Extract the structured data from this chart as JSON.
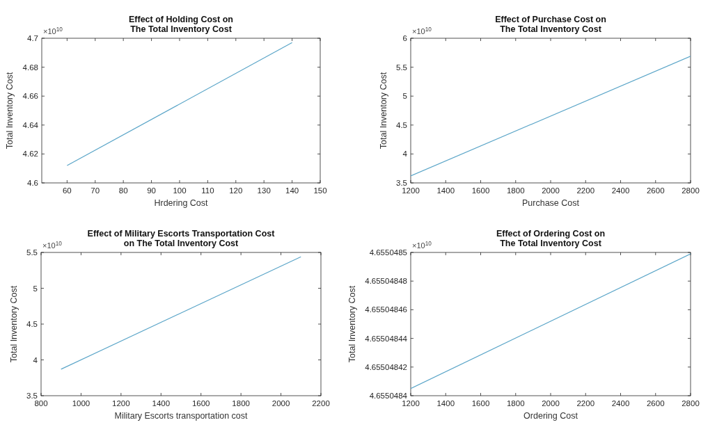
{
  "chart_data": [
    {
      "type": "line",
      "title": "Effect of Holding Cost on\nThe Total Inventory Cost",
      "xlabel": "Hrdering Cost",
      "ylabel": "Total Inventory Cost",
      "annotations": [
        "×10$^{10}$"
      ],
      "x": [
        60,
        140
      ],
      "series": [
        {
          "color": "#5aa5c8",
          "values": [
            4.612,
            4.697
          ]
        }
      ],
      "xlim": [
        51,
        150
      ],
      "xticks": [
        60,
        70,
        80,
        90,
        100,
        110,
        120,
        130,
        140,
        150
      ],
      "ylim": [
        4.6,
        4.7
      ],
      "yticks": [
        4.6,
        4.62,
        4.64,
        4.66,
        4.68,
        4.7
      ]
    },
    {
      "type": "line",
      "title": "Effect of Purchase Cost on\nThe Total Inventory Cost",
      "xlabel": "Purchase Cost",
      "ylabel": "Total Inventory Cost",
      "annotations": [
        "×10$^{10}$"
      ],
      "x": [
        1200,
        2800
      ],
      "series": [
        {
          "color": "#5aa5c8",
          "values": [
            3.62,
            5.69
          ]
        }
      ],
      "xlim": [
        1200,
        2800
      ],
      "xticks": [
        1200,
        1400,
        1600,
        1800,
        2000,
        2200,
        2400,
        2600,
        2800
      ],
      "ylim": [
        3.5,
        6
      ],
      "yticks": [
        3.5,
        4,
        4.5,
        5,
        5.5,
        6
      ]
    },
    {
      "type": "line",
      "title": "Effect of Military Escorts Transportation Cost\non The Total Inventory Cost",
      "xlabel": "Military Escorts transportation cost",
      "ylabel": "Total Inventory Cost",
      "annotations": [
        "×10$^{10}$"
      ],
      "x": [
        900,
        2100
      ],
      "series": [
        {
          "color": "#5aa5c8",
          "values": [
            3.87,
            5.44
          ]
        }
      ],
      "xlim": [
        800,
        2200
      ],
      "xticks": [
        800,
        1000,
        1200,
        1400,
        1600,
        1800,
        2000,
        2200
      ],
      "ylim": [
        3.5,
        5.5
      ],
      "yticks": [
        3.5,
        4,
        4.5,
        5,
        5.5
      ]
    },
    {
      "type": "line",
      "title": "Effect of Ordering Cost on\nThe Total Inventory Cost",
      "xlabel": "Ordering Cost",
      "ylabel": "Total Inventory Cost",
      "annotations": [
        "×10$^{10}$"
      ],
      "x": [
        1200,
        2800
      ],
      "series": [
        {
          "color": "#5aa5c8",
          "values": [
            4.655048405,
            4.655048499
          ]
        }
      ],
      "xlim": [
        1200,
        2800
      ],
      "xticks": [
        1200,
        1400,
        1600,
        1800,
        2000,
        2200,
        2400,
        2600,
        2800
      ],
      "ylim": [
        4.6550484,
        4.6550485
      ],
      "yticks": [
        4.6550484,
        4.65504842,
        4.65504844,
        4.65504846,
        4.65504848,
        4.6550485
      ]
    }
  ]
}
